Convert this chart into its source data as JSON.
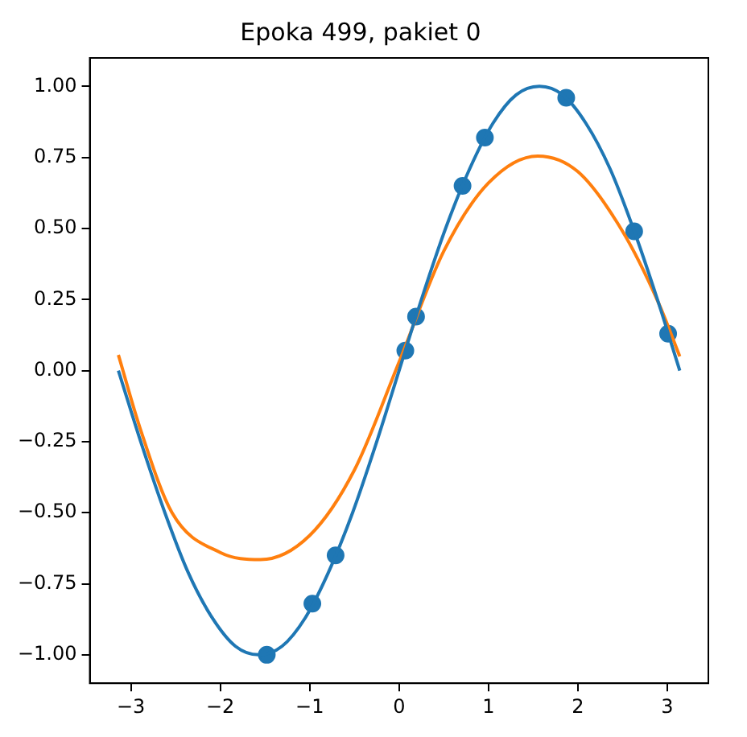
{
  "chart_data": {
    "type": "line",
    "title": "Epoka 499, pakiet 0",
    "xlim": [
      -3.46,
      3.46
    ],
    "ylim": [
      -1.1,
      1.1
    ],
    "xticks": [
      {
        "value": -3,
        "label": "−3"
      },
      {
        "value": -2,
        "label": "−2"
      },
      {
        "value": -1,
        "label": "−1"
      },
      0,
      1,
      2,
      3
    ],
    "yticks": [
      {
        "value": -1,
        "label": "−1.00"
      },
      {
        "value": -0.75,
        "label": "−0.75"
      },
      {
        "value": -0.5,
        "label": "−0.50"
      },
      {
        "value": -0.25,
        "label": "−0.25"
      },
      {
        "value": 0,
        "label": "0.00"
      },
      {
        "value": 0.25,
        "label": "0.25"
      },
      {
        "value": 0.5,
        "label": "0.50"
      },
      {
        "value": 0.75,
        "label": "0.75"
      },
      {
        "value": 1,
        "label": "1.00"
      }
    ],
    "grid": false,
    "legend": false,
    "marker": "none",
    "line_style": "solid",
    "series": [
      {
        "color": "#1f77b4",
        "x": [
          -3.14,
          -2.88,
          -2.62,
          -2.36,
          -2.09,
          -1.83,
          -1.57,
          -1.31,
          -1.05,
          -0.79,
          -0.52,
          -0.26,
          0,
          0.26,
          0.52,
          0.79,
          1.05,
          1.31,
          1.57,
          1.83,
          2.09,
          2.36,
          2.62,
          2.88,
          3.14
        ],
        "values": [
          0,
          -0.26,
          -0.5,
          -0.71,
          -0.87,
          -0.97,
          -1,
          -0.97,
          -0.87,
          -0.71,
          -0.5,
          -0.26,
          0,
          0.26,
          0.5,
          0.71,
          0.87,
          0.97,
          1,
          0.97,
          0.87,
          0.71,
          0.5,
          0.26,
          0
        ]
      },
      {
        "color": "#ff7f0e",
        "x": [
          -3.14,
          -2.9,
          -2.54,
          -2.0,
          -1.55,
          -1.0,
          -0.5,
          0,
          0.5,
          1.0,
          1.55,
          2.0,
          2.5,
          2.9,
          3.14
        ],
        "values": [
          0.055,
          -0.2,
          -0.5,
          -0.64,
          -0.665,
          -0.58,
          -0.35,
          0.03,
          0.42,
          0.66,
          0.755,
          0.7,
          0.49,
          0.24,
          0.05
        ]
      },
      {
        "type": "scatter",
        "color": "#1f77b4",
        "marker": "circle",
        "x": [
          -1.48,
          -0.97,
          -0.71,
          0.07,
          0.19,
          0.71,
          0.96,
          1.87,
          2.63,
          3.01
        ],
        "values": [
          -1.0,
          -0.82,
          -0.65,
          0.07,
          0.19,
          0.65,
          0.82,
          0.96,
          0.49,
          0.13
        ]
      }
    ]
  }
}
